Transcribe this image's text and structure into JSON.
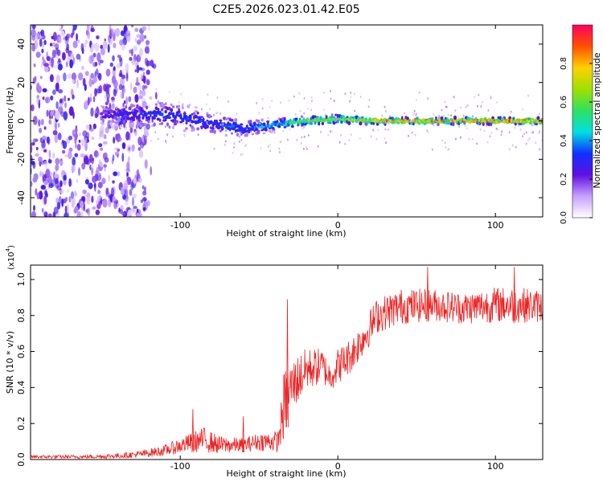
{
  "title": "C2E5.2026.023.01.42.E05",
  "colors": {
    "snr_line": "#ee2222",
    "axis": "#000000",
    "background": "#ffffff"
  },
  "chart_data": [
    {
      "type": "heatmap",
      "name": "spectrogram",
      "xlabel": "Height of straight line (km)",
      "ylabel": "Frequency (Hz)",
      "xlim": [
        -195,
        130
      ],
      "ylim": [
        -50,
        50
      ],
      "xticks": [
        -100,
        0,
        100
      ],
      "xtick_labels": [
        "-100",
        "0",
        "100"
      ],
      "yticks": [
        -40,
        -20,
        0,
        20,
        40
      ],
      "ytick_labels": [
        "-40",
        "-20",
        "0",
        "20",
        "40"
      ],
      "colorbar": {
        "label": "Normalized spectral amplitude",
        "range": [
          0,
          1
        ],
        "ticks": [
          0.0,
          0.2,
          0.4,
          0.6,
          0.8
        ],
        "tick_labels": [
          "0.0",
          "0.2",
          "0.4",
          "0.6",
          "0.8"
        ],
        "stops": [
          "#ffffff",
          "#c8a0ff",
          "#6010e0",
          "#1030ff",
          "#00e0e0",
          "#30e060",
          "#a0e000",
          "#ffd000",
          "#ff5000",
          "#ff0060"
        ]
      },
      "noise_region_x": [
        -195,
        -120
      ],
      "signal_track": {
        "x": [
          -150,
          -120,
          -100,
          -80,
          -60,
          -40,
          -20,
          0,
          20,
          60,
          100,
          130
        ],
        "freq": [
          3,
          4,
          2,
          -1,
          -4,
          -2,
          0,
          1,
          0,
          0,
          0,
          0
        ],
        "amplitude": [
          0.25,
          0.35,
          0.35,
          0.35,
          0.4,
          0.45,
          0.75,
          0.7,
          0.85,
          0.95,
          0.95,
          0.95
        ],
        "spread_hz": [
          5,
          7,
          6,
          5,
          4,
          3,
          2,
          2,
          1.5,
          1.5,
          1.5,
          1.5
        ]
      }
    },
    {
      "type": "line",
      "name": "snr",
      "xlabel": "Height of straight line (km)",
      "ylabel": "SNR (10 * v/v)",
      "exponent_label": "(x10",
      "exponent_power": "4",
      "exponent_close": ")",
      "xlim": [
        -195,
        130
      ],
      "ylim": [
        0,
        1.08
      ],
      "xticks": [
        -100,
        0,
        100
      ],
      "xtick_labels": [
        "-100",
        "0",
        "100"
      ],
      "yticks": [
        0.0,
        0.2,
        0.4,
        0.6,
        0.8,
        1.0
      ],
      "ytick_labels": [
        "0.0",
        "0.2",
        "0.4",
        "0.6",
        "0.8",
        "1.0"
      ],
      "x": [
        -195,
        -160,
        -140,
        -125,
        -110,
        -95,
        -85,
        -75,
        -60,
        -50,
        -38,
        -34,
        -30,
        -25,
        -20,
        -10,
        -5,
        0,
        5,
        10,
        18,
        25,
        40,
        60,
        80,
        100,
        115,
        130
      ],
      "mean": [
        0.015,
        0.015,
        0.02,
        0.03,
        0.05,
        0.09,
        0.11,
        0.08,
        0.08,
        0.1,
        0.1,
        0.3,
        0.4,
        0.45,
        0.5,
        0.52,
        0.46,
        0.52,
        0.55,
        0.6,
        0.7,
        0.8,
        0.85,
        0.86,
        0.84,
        0.86,
        0.86,
        0.85
      ],
      "noise": [
        0.01,
        0.01,
        0.015,
        0.02,
        0.03,
        0.05,
        0.07,
        0.05,
        0.04,
        0.05,
        0.06,
        0.2,
        0.14,
        0.14,
        0.12,
        0.1,
        0.08,
        0.1,
        0.1,
        0.1,
        0.1,
        0.1,
        0.1,
        0.09,
        0.09,
        0.1,
        0.1,
        0.09
      ],
      "spikes": [
        {
          "x": -32,
          "y": 0.89
        },
        {
          "x": -92,
          "y": 0.28
        },
        {
          "x": -60,
          "y": 0.24
        },
        {
          "x": 57,
          "y": 1.07
        },
        {
          "x": 112,
          "y": 1.07
        }
      ]
    }
  ]
}
